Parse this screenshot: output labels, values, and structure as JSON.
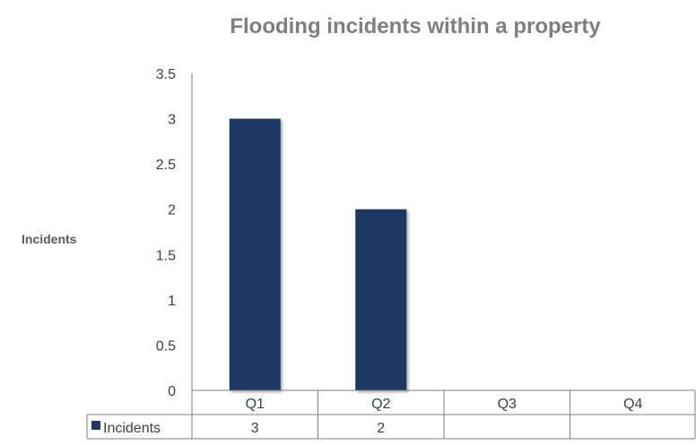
{
  "chart_data": {
    "type": "bar",
    "title": "Flooding incidents within a property",
    "ylabel": "Incidents",
    "xlabel": "",
    "categories": [
      "Q1",
      "Q2",
      "Q3",
      "Q4"
    ],
    "series": [
      {
        "name": "Incidents",
        "values": [
          3,
          2,
          null,
          null
        ],
        "color": "#1f3864"
      }
    ],
    "ylim": [
      0,
      3.5
    ],
    "yticks": [
      "0",
      "0.5",
      "1",
      "1.5",
      "2",
      "2.5",
      "3",
      "3.5"
    ],
    "data_table": {
      "row_label": "Incidents",
      "cells": [
        "3",
        "2",
        "",
        ""
      ]
    },
    "grid": false,
    "legend": "data-table"
  }
}
